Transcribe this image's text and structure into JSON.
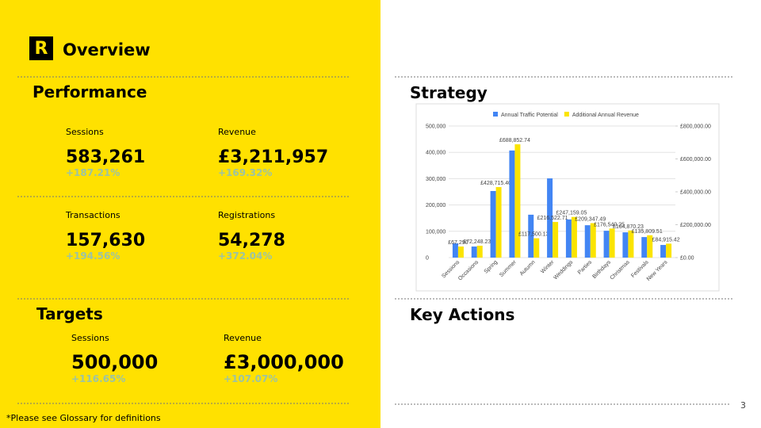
{
  "header": {
    "logo": "R",
    "title": "Overview"
  },
  "performance": {
    "title": "Performance",
    "metrics": [
      {
        "label": "Sessions",
        "value": "583,261",
        "change": "+187.21%"
      },
      {
        "label": "Revenue",
        "value": "£3,211,957",
        "change": "+169.32%"
      },
      {
        "label": "Transactions",
        "value": "157,630",
        "change": "+194.56%"
      },
      {
        "label": "Registrations",
        "value": "54,278",
        "change": "+372.04%"
      }
    ]
  },
  "targets": {
    "title": "Targets",
    "metrics": [
      {
        "label": "Sessions",
        "value": "500,000",
        "change": "+116.65%"
      },
      {
        "label": "Revenue",
        "value": "£3,000,000",
        "change": "+107.07%"
      }
    ]
  },
  "strategy_title": "Strategy",
  "key_actions_title": "Key Actions",
  "page_number": "3",
  "footnote": "*Please see Glossary for definitions",
  "chart_data": {
    "type": "bar",
    "categories": [
      "Sessions",
      "Occasions",
      "Spring",
      "Summer",
      "Autumn",
      "Winter",
      "Weddings",
      "Parties",
      "Birthdays",
      "Christmas",
      "Festivals",
      "New Years"
    ],
    "series": [
      {
        "name": "Annual Traffic Potential",
        "color": "#4285f4",
        "values": [
          54000,
          42000,
          253000,
          407000,
          163000,
          301000,
          145000,
          123000,
          102000,
          96000,
          78000,
          48000
        ]
      },
      {
        "name": "Additional Annual Revenue",
        "color": "#fbe400",
        "axis": "y2",
        "values": [
          67290,
          72248.23,
          428715.4,
          688852.74,
          117500.13,
          216522.71,
          247159.05,
          209347.49,
          176540.25,
          164870.23,
          135809.51,
          84915.42
        ],
        "value_labels": [
          "£67,290",
          "£72,248.23",
          "£428,715.40",
          "£688,852.74",
          "£117,500.13",
          "£216,522.71",
          "£247,159.05",
          "£209,347.49",
          "£176,540.25",
          "£164,870.23",
          "£135,809.51",
          "£84,915.42"
        ]
      }
    ],
    "ylim": [
      0,
      500000
    ],
    "yticks": [
      0,
      {
        "value": 100000,
        "label": "100,000"
      },
      {
        "value": 200000,
        "label": "200,000"
      },
      {
        "value": 300000,
        "label": "300,000"
      },
      {
        "value": 400000,
        "label": "400,000"
      },
      {
        "value": 500000,
        "label": "500,000"
      }
    ],
    "y2lim": [
      0,
      800000
    ],
    "y2ticks": [
      {
        "value": 0,
        "label": "£0.00"
      },
      {
        "value": 200000,
        "label": "£200,000.00"
      },
      {
        "value": 400000,
        "label": "£400,000.00"
      },
      {
        "value": 600000,
        "label": "£600,000.00"
      },
      {
        "value": 800000,
        "label": "£800,000.00"
      }
    ],
    "grid": true,
    "legend": "top"
  }
}
